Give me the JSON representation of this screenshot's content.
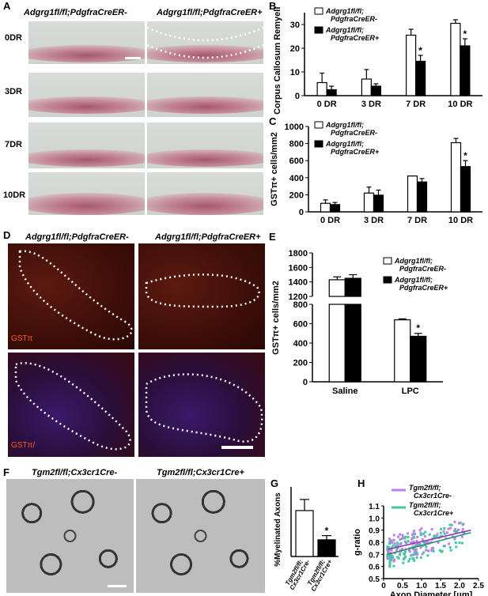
{
  "panels": {
    "A": {
      "label": "A",
      "col_titles": [
        "Adgrg1fl/fl;PdgfraCreER-",
        "Adgrg1fl/fl;PdgfraCreER+"
      ],
      "rows": [
        "0DR",
        "3DR",
        "7DR",
        "10DR"
      ]
    },
    "B": {
      "label": "B"
    },
    "C": {
      "label": "C"
    },
    "D": {
      "label": "D",
      "col_titles": [
        "Adgrg1fl/fl;PdgfraCreER-",
        "Adgrg1fl/fl;PdgfraCreER+"
      ],
      "stain_top": "GSTπ",
      "stain_bottom": "GSTπ/"
    },
    "E": {
      "label": "E"
    },
    "F": {
      "label": "F",
      "col_titles": [
        "Tgm2fl/fl;Cx3cr1Cre-",
        "Tgm2fl/fl;Cx3cr1Cre+"
      ]
    },
    "G": {
      "label": "G"
    },
    "H": {
      "label": "H"
    }
  },
  "colors": {
    "white_bar": "#ffffff",
    "black_bar": "#000000",
    "purple": "#c080e8",
    "teal": "#40c8a0"
  },
  "chart_data": [
    {
      "id": "B",
      "type": "bar",
      "ylabel": "% Corpus Callosum Remyelinated",
      "categories": [
        "0 DR",
        "3 DR",
        "7 DR",
        "10 DR"
      ],
      "ylim": [
        0,
        35
      ],
      "yticks": [
        0,
        10,
        20,
        30
      ],
      "series": [
        {
          "name": "Adgrg1fl/fl; PdgfraCreER-",
          "values": [
            5.5,
            7.0,
            25.5,
            30.5
          ],
          "err": [
            4,
            4,
            2.5,
            1.5
          ]
        },
        {
          "name": "Adgrg1fl/fl; PdgfraCreER+",
          "values": [
            2.5,
            4.0,
            14.5,
            21.0
          ],
          "err": [
            1.5,
            1,
            2.5,
            3
          ]
        }
      ],
      "significant": [
        2,
        3
      ]
    },
    {
      "id": "C",
      "type": "bar",
      "ylabel": "GSTπ+ cells/mm2",
      "categories": [
        "0 DR",
        "3 DR",
        "7 DR",
        "10 DR"
      ],
      "ylim": [
        0,
        1000
      ],
      "yticks": [
        0,
        200,
        400,
        600,
        800,
        1000
      ],
      "series": [
        {
          "name": "Adgrg1fl/fl; PdgfraCreER-",
          "values": [
            100,
            220,
            420,
            810
          ],
          "err": [
            40,
            70,
            0,
            50
          ]
        },
        {
          "name": "Adgrg1fl/fl; PdgfraCreER+",
          "values": [
            85,
            195,
            350,
            530
          ],
          "err": [
            25,
            60,
            40,
            70
          ]
        }
      ],
      "significant": [
        3
      ]
    },
    {
      "id": "E",
      "type": "bar",
      "ylabel": "GSTπ+ cells/mm2",
      "categories": [
        "Saline",
        "LPC"
      ],
      "yticks": [
        0,
        200,
        400,
        600,
        800,
        1200,
        1400,
        1600,
        1800
      ],
      "axis_break": [
        800,
        1200
      ],
      "series": [
        {
          "name": "Adgrg1fl/fl; PdgfraCreER-",
          "values": [
            1430,
            640
          ],
          "err": [
            40,
            10
          ]
        },
        {
          "name": "Adgrg1fl/fl; PdgfraCreER+",
          "values": [
            1450,
            470
          ],
          "err": [
            50,
            30
          ]
        }
      ],
      "significant": [
        1
      ]
    },
    {
      "id": "G",
      "type": "bar",
      "ylabel": "%Myelinated Axons",
      "categories": [
        "Tgm2fl/fl; Cx3cr1Cre-",
        "Tgm2fl/fl; Cx3cr1Cre+"
      ],
      "ylim": [
        0,
        25
      ],
      "values": [
        16.5,
        6.0
      ],
      "err": [
        4,
        1.5
      ],
      "significant": [
        1
      ]
    },
    {
      "id": "H",
      "type": "scatter",
      "ylabel": "g-ratio",
      "xlabel": "Axon Diameter [μm]",
      "xlim": [
        0,
        2.5
      ],
      "ylim": [
        0.5,
        1.1
      ],
      "xticks": [
        0,
        0.5,
        1.0,
        1.5,
        2.0,
        2.5
      ],
      "yticks": [
        0.5,
        0.6,
        0.7,
        0.8,
        0.9,
        1.0,
        1.1
      ],
      "series": [
        {
          "name": "Tgm2fl/fl; Cx3cr1Cre-",
          "fit": [
            [
              0.1,
              0.74
            ],
            [
              2.3,
              0.9
            ]
          ]
        },
        {
          "name": "Tgm2fl/fl; Cx3cr1Cre+",
          "fit": [
            [
              0.1,
              0.7
            ],
            [
              2.3,
              0.88
            ]
          ]
        }
      ]
    }
  ]
}
